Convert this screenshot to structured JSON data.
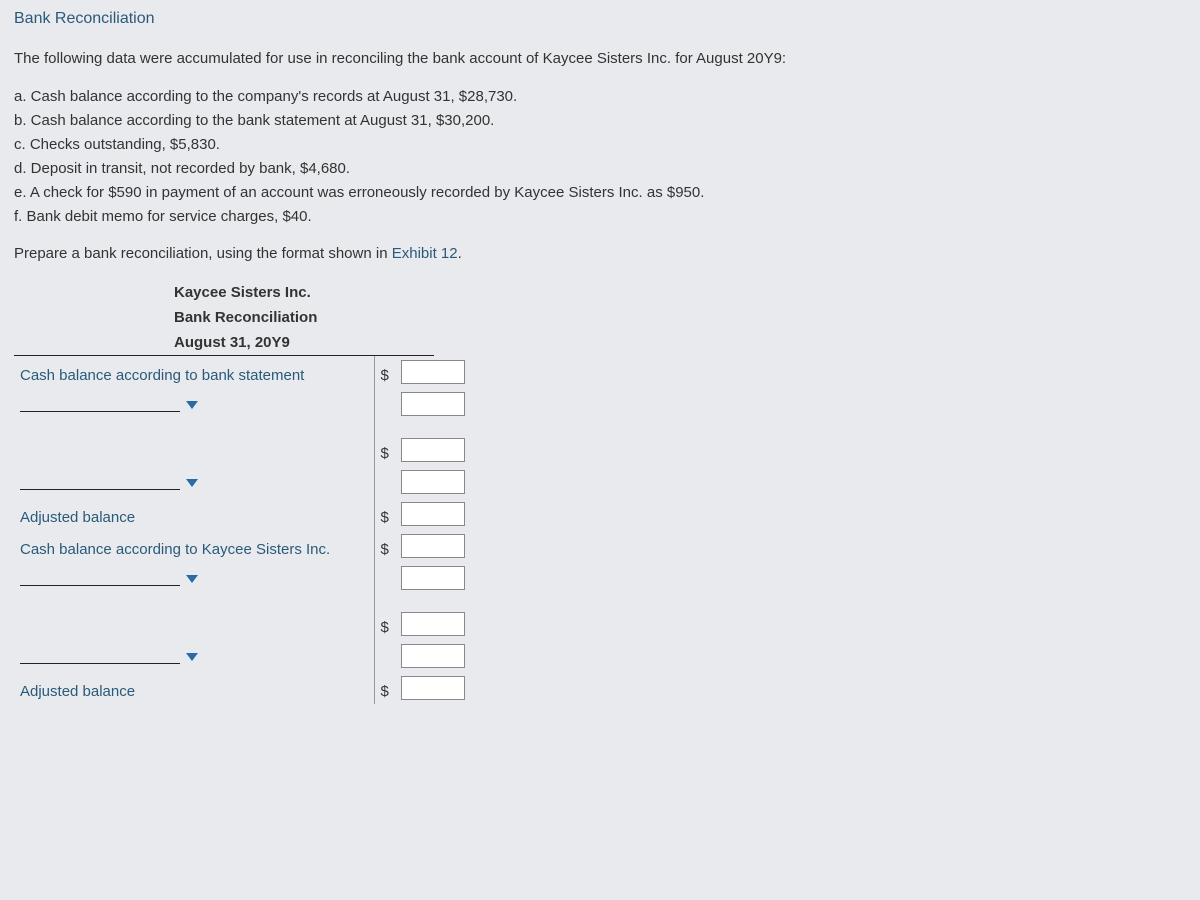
{
  "page": {
    "title": "Bank Reconciliation",
    "intro": "The following data were accumulated for use in reconciling the bank account of Kaycee Sisters Inc. for August 20Y9:",
    "items": [
      "a. Cash balance according to the company's records at August 31, $28,730.",
      "b. Cash balance according to the bank statement at August 31, $30,200.",
      "c. Checks outstanding, $5,830.",
      "d. Deposit in transit, not recorded by bank, $4,680.",
      "e. A check for $590 in payment of an account was erroneously recorded by Kaycee Sisters Inc. as $950.",
      "f. Bank debit memo for service charges, $40."
    ],
    "instruction_prefix": "Prepare a bank reconciliation, using the format shown in ",
    "instruction_link": "Exhibit 12",
    "instruction_suffix": "."
  },
  "recon": {
    "header": {
      "company": "Kaycee Sisters Inc.",
      "title": "Bank Reconciliation",
      "date": "August 31, 20Y9"
    },
    "rows": {
      "bank_stmt_label": "Cash balance according to bank statement",
      "adjusted1_label": "Adjusted balance",
      "company_label": "Cash balance according to Kaycee Sisters Inc.",
      "adjusted2_label": "Adjusted balance"
    },
    "dollar": "$",
    "inputs": {
      "bank_stmt": "",
      "bank_add": "",
      "bank_sub": "",
      "bank_sub2": "",
      "adjusted1": "",
      "company_bal": "",
      "company_add": "",
      "company_sub": "",
      "company_sub2": "",
      "adjusted2": ""
    }
  },
  "colors": {
    "link": "#2a5a7a",
    "text": "#333333",
    "bg": "#e8eaed",
    "arrow": "#2a6aa6",
    "border": "#888888"
  }
}
